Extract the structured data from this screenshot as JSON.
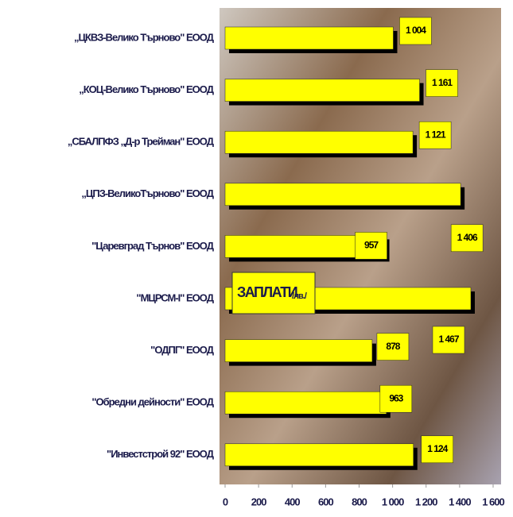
{
  "chart_data": {
    "type": "barh",
    "annotation": "ЗАПЛАТИ",
    "annotation_unit": "/лв./",
    "categories": [
      "„ЦКВЗ-Велико Търново\" ЕООД",
      "„КОЦ-Велико Търново\" ЕООД",
      "„СБАЛПФЗ „Д-р Трейман\" ЕООД",
      "„ЦПЗ-ВеликоТърново\" ЕООД",
      "\"Царевград Търнов\" ЕООД",
      "\"МЦРСМ-І\" ЕООД",
      "\"ОДПГ\" ЕООД",
      "\"Обредни дейности\" ЕООД",
      "\"Инвестстрой 92\" ЕООД"
    ],
    "values": [
      1004,
      1161,
      1121,
      1406,
      957,
      1467,
      878,
      963,
      1124
    ],
    "value_labels": [
      "1 004",
      "1 161",
      "1 121",
      "1 406",
      "957",
      "1 467",
      "878",
      "963",
      "1 124"
    ],
    "color": "#ffff00",
    "xlim": [
      0,
      1600
    ],
    "xticks": [
      0,
      200,
      400,
      600,
      800,
      {
        "value": 1000,
        "label": "1 000"
      },
      {
        "value": 1200,
        "label": "1 200"
      },
      {
        "value": 1400,
        "label": "1 400"
      },
      {
        "value": 1600,
        "label": "1 600"
      }
    ]
  }
}
